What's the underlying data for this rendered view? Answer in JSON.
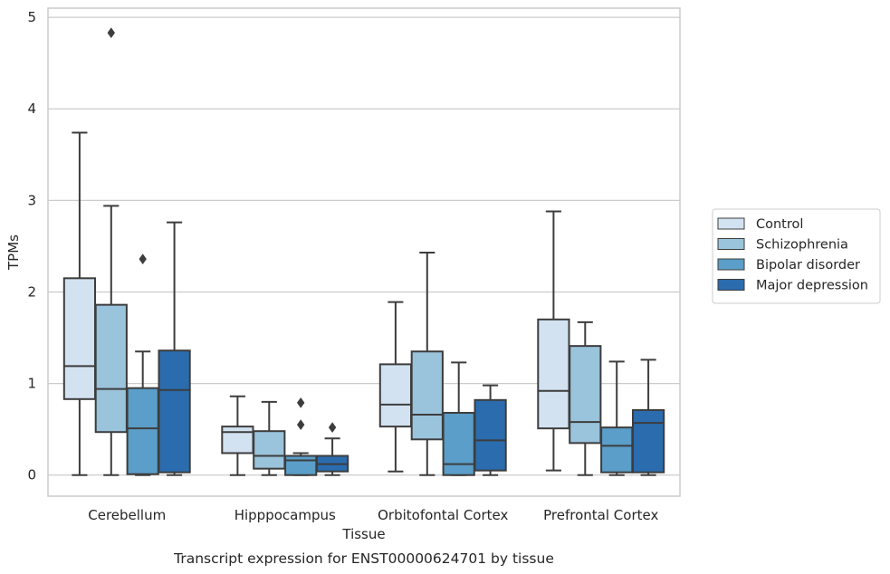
{
  "chart_data": {
    "type": "box",
    "title": "",
    "caption": "Transcript expression for ENST00000624701 by tissue",
    "xlabel": "Tissue",
    "ylabel": "TPMs",
    "ylim": [
      -0.23,
      5.1
    ],
    "yticks": [
      "0",
      "1",
      "2",
      "3",
      "4",
      "5"
    ],
    "grid": "horizontal",
    "legend_position": "right",
    "categories": [
      "Cerebellum",
      "Hipppocampus",
      "Orbitofontal Cortex",
      "Prefrontal Cortex"
    ],
    "series": [
      {
        "name": "Control",
        "color": "#d2e2f1",
        "boxes": [
          {
            "low": 0.0,
            "q1": 0.83,
            "median": 1.19,
            "q3": 2.15,
            "high": 3.74,
            "outliers": []
          },
          {
            "low": 0.0,
            "q1": 0.24,
            "median": 0.47,
            "q3": 0.53,
            "high": 0.86,
            "outliers": []
          },
          {
            "low": 0.04,
            "q1": 0.53,
            "median": 0.77,
            "q3": 1.21,
            "high": 1.89,
            "outliers": []
          },
          {
            "low": 0.05,
            "q1": 0.51,
            "median": 0.92,
            "q3": 1.7,
            "high": 2.88,
            "outliers": []
          }
        ]
      },
      {
        "name": "Schizophrenia",
        "color": "#9ac3dc",
        "boxes": [
          {
            "low": 0.0,
            "q1": 0.47,
            "median": 0.94,
            "q3": 1.86,
            "high": 2.94,
            "outliers": [
              4.83
            ]
          },
          {
            "low": 0.0,
            "q1": 0.07,
            "median": 0.21,
            "q3": 0.48,
            "high": 0.8,
            "outliers": []
          },
          {
            "low": 0.0,
            "q1": 0.39,
            "median": 0.66,
            "q3": 1.35,
            "high": 2.43,
            "outliers": []
          },
          {
            "low": 0.0,
            "q1": 0.35,
            "median": 0.58,
            "q3": 1.41,
            "high": 1.67,
            "outliers": []
          }
        ]
      },
      {
        "name": "Bipolar disorder",
        "color": "#5a9ec9",
        "boxes": [
          {
            "low": 0.0,
            "q1": 0.01,
            "median": 0.51,
            "q3": 0.95,
            "high": 1.35,
            "outliers": [
              2.36
            ]
          },
          {
            "low": 0.0,
            "q1": 0.0,
            "median": 0.16,
            "q3": 0.21,
            "high": 0.24,
            "outliers": [
              0.79,
              0.55
            ]
          },
          {
            "low": 0.0,
            "q1": 0.0,
            "median": 0.12,
            "q3": 0.68,
            "high": 1.23,
            "outliers": []
          },
          {
            "low": 0.0,
            "q1": 0.03,
            "median": 0.32,
            "q3": 0.52,
            "high": 1.24,
            "outliers": []
          }
        ]
      },
      {
        "name": "Major depression",
        "color": "#2a6cae",
        "boxes": [
          {
            "low": 0.0,
            "q1": 0.03,
            "median": 0.93,
            "q3": 1.36,
            "high": 2.76,
            "outliers": []
          },
          {
            "low": 0.0,
            "q1": 0.04,
            "median": 0.12,
            "q3": 0.21,
            "high": 0.4,
            "outliers": [
              0.52
            ]
          },
          {
            "low": 0.0,
            "q1": 0.05,
            "median": 0.38,
            "q3": 0.82,
            "high": 0.98,
            "outliers": []
          },
          {
            "low": 0.0,
            "q1": 0.03,
            "median": 0.57,
            "q3": 0.71,
            "high": 1.26,
            "outliers": []
          }
        ]
      }
    ]
  }
}
